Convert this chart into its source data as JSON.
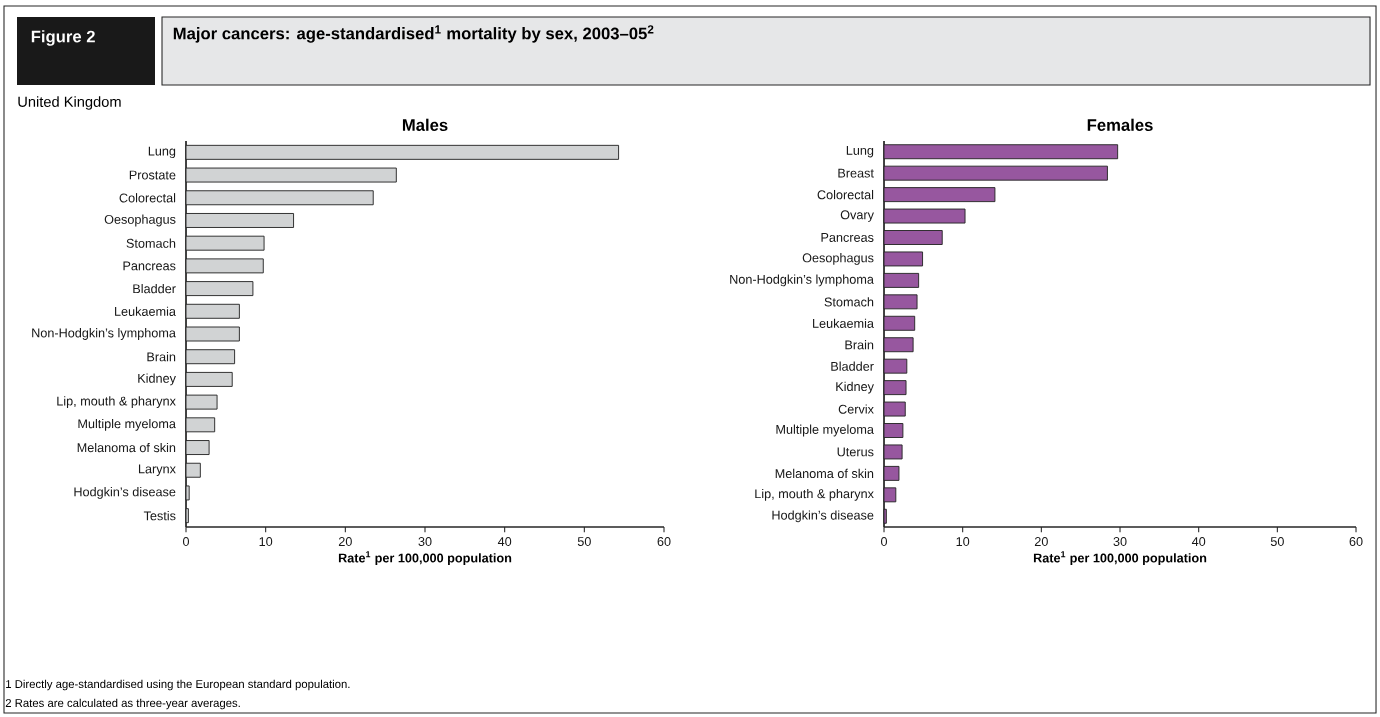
{
  "chart_data": [
    {
      "type": "bar",
      "orientation": "horizontal",
      "title": "Males",
      "xlabel": "**Rate$^{1}$ per 100,000 population**",
      "annotations": [
        "Figure 2",
        "Major cancers: age-standardised$^{1}$ mortality by sex, 2003–05$^{2}$",
        "United Kingdom",
        "1  Directly age-standardised using the European standard population.",
        "2  Rates are calculated as three-year averages."
      ],
      "categories": [
        "Lung",
        "Prostate",
        "Colorectal",
        "Oesophagus",
        "Stomach",
        "Pancreas",
        "Bladder",
        "Leukaemia",
        "Non-Hodgkin’s lymphoma",
        "Brain",
        "Kidney",
        "Lip, mouth & pharynx",
        "Multiple myeloma",
        "Melanoma of skin",
        "Larynx",
        "Hodgkin’s disease",
        "Testis"
      ],
      "values": [
        54.3,
        26.4,
        23.5,
        13.5,
        9.8,
        9.7,
        8.4,
        6.7,
        6.7,
        6.1,
        5.8,
        3.9,
        3.6,
        2.9,
        1.8,
        0.4,
        0.3
      ],
      "color": "#d1d3d4",
      "xlim": [
        0,
        60
      ],
      "xticks": [
        0,
        10,
        20,
        30,
        40,
        50,
        60
      ]
    },
    {
      "type": "bar",
      "orientation": "horizontal",
      "title": "Females",
      "xlabel": "**Rate$^{1}$ per 100,000 population**",
      "categories": [
        "Lung",
        "Breast",
        "Colorectal",
        "Ovary",
        "Pancreas",
        "Oesophagus",
        "Non-Hodgkin’s lymphoma",
        "Stomach",
        "Leukaemia",
        "Brain",
        "Bladder",
        "Kidney",
        "Cervix",
        "Multiple myeloma",
        "Uterus",
        "Melanoma of skin",
        "Lip, mouth & pharynx",
        "Hodgkin’s disease"
      ],
      "values": [
        29.7,
        28.4,
        14.1,
        10.3,
        7.4,
        4.9,
        4.4,
        4.2,
        3.9,
        3.7,
        2.9,
        2.8,
        2.7,
        2.4,
        2.3,
        1.9,
        1.5,
        0.3
      ],
      "color": "#97579f",
      "xlim": [
        0,
        60
      ],
      "xticks": [
        0,
        10,
        20,
        30,
        40,
        50,
        60
      ]
    }
  ]
}
